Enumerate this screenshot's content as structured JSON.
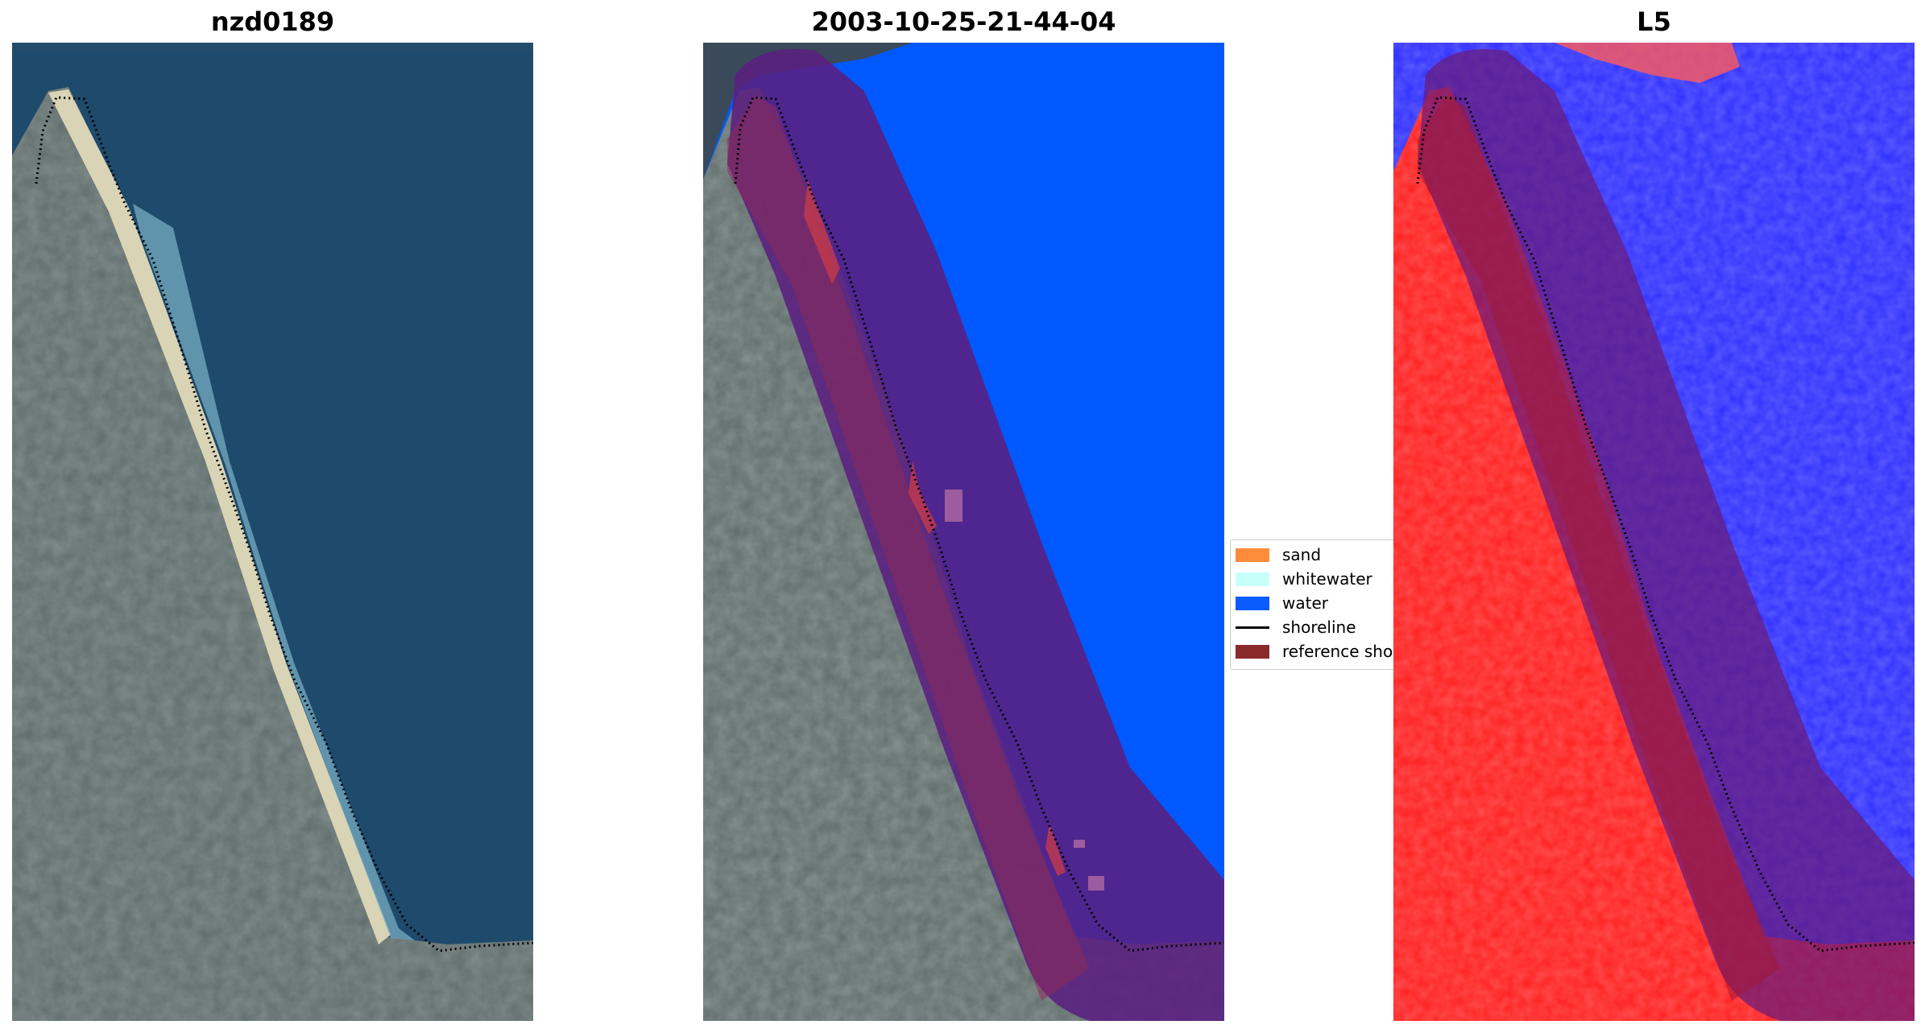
{
  "panels": [
    {
      "title": "nzd0189"
    },
    {
      "title": "2003-10-25-21-44-04"
    },
    {
      "title": "L5"
    }
  ],
  "legend": {
    "items": [
      {
        "label": "sand",
        "kind": "patch",
        "color": "#ff8c3a"
      },
      {
        "label": "whitewater",
        "kind": "patch",
        "color": "#c8fffa"
      },
      {
        "label": "water",
        "kind": "patch",
        "color": "#0a5cff"
      },
      {
        "label": "shoreline",
        "kind": "line",
        "color": "#000000"
      },
      {
        "label": "reference shoreline buffer",
        "kind": "patch",
        "color": "#8b2a2a"
      }
    ]
  },
  "colors": {
    "sea": "#1d4a6e",
    "land": "#5e6b6a",
    "sand_strip": "#d8d3b3",
    "water_class": "#0059ff",
    "buffer": "#6a1a7a",
    "index_land": "#ff1a1a",
    "index_water": "#2a2aff"
  }
}
